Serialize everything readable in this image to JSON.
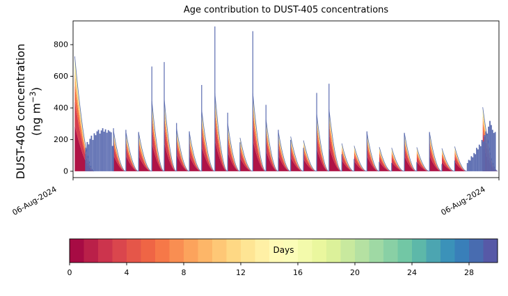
{
  "chart_data": {
    "type": "area",
    "title": "Age contribution to DUST-405 concentrations",
    "ylabel_line1": "DUST-405 concentration",
    "ylabel_unit_pre": "(ng m",
    "ylabel_unit_sup": "−3",
    "ylabel_unit_post": ")",
    "ylim": [
      -40,
      950
    ],
    "yticks": [
      0,
      200,
      400,
      600,
      800
    ],
    "xtick_labels": [
      "06-Aug-2024",
      "06-Aug-2024"
    ],
    "line_color": "#5a6bb0",
    "grid": false,
    "legend": "none",
    "spectral_anchors": [
      [
        0.0,
        "#9e0142"
      ],
      [
        0.1,
        "#d53e4f"
      ],
      [
        0.2,
        "#f46d43"
      ],
      [
        0.3,
        "#fdae61"
      ],
      [
        0.4,
        "#fee08b"
      ],
      [
        0.5,
        "#ffffbf"
      ],
      [
        0.6,
        "#e6f598"
      ],
      [
        0.7,
        "#abdda4"
      ],
      [
        0.8,
        "#66c2a5"
      ],
      [
        0.9,
        "#3288bd"
      ],
      [
        1.0,
        "#5e4fa2"
      ]
    ],
    "spikes": [
      {
        "f": 0.095,
        "peak": 272
      },
      {
        "f": 0.124,
        "peak": 262
      },
      {
        "f": 0.154,
        "peak": 248
      },
      {
        "f": 0.185,
        "peak": 662
      },
      {
        "f": 0.214,
        "peak": 690
      },
      {
        "f": 0.243,
        "peak": 305
      },
      {
        "f": 0.273,
        "peak": 252
      },
      {
        "f": 0.302,
        "peak": 545
      },
      {
        "f": 0.333,
        "peak": 915
      },
      {
        "f": 0.363,
        "peak": 370
      },
      {
        "f": 0.392,
        "peak": 183
      },
      {
        "f": 0.422,
        "peak": 885
      },
      {
        "f": 0.453,
        "peak": 420
      },
      {
        "f": 0.482,
        "peak": 262
      },
      {
        "f": 0.511,
        "peak": 198
      },
      {
        "f": 0.541,
        "peak": 148
      },
      {
        "f": 0.572,
        "peak": 495
      },
      {
        "f": 0.601,
        "peak": 553
      },
      {
        "f": 0.631,
        "peak": 108
      },
      {
        "f": 0.66,
        "peak": 78
      },
      {
        "f": 0.69,
        "peak": 252
      },
      {
        "f": 0.719,
        "peak": 60
      },
      {
        "f": 0.748,
        "peak": 52
      },
      {
        "f": 0.778,
        "peak": 243
      },
      {
        "f": 0.807,
        "peak": 58
      },
      {
        "f": 0.837,
        "peak": 248
      },
      {
        "f": 0.866,
        "peak": 45
      },
      {
        "f": 0.896,
        "peak": 68
      }
    ],
    "lead_wedge": {
      "f": 0.004,
      "span": 0.046,
      "h0": 165
    },
    "end_wedge": {
      "f": 0.962,
      "span": 0.036,
      "h0": 92
    },
    "left_cluster": {
      "f_start": 0.03,
      "f_step": 0.0033,
      "heights": [
        148,
        185,
        170,
        205,
        225,
        198,
        240,
        228,
        252,
        262,
        238,
        258,
        272,
        250,
        265,
        244,
        260,
        252,
        246,
        160
      ]
    },
    "right_cluster": {
      "f_start": 0.926,
      "f_step": 0.0031,
      "heights": [
        52,
        72,
        68,
        95,
        88,
        115,
        108,
        148,
        138,
        168,
        158,
        198,
        188,
        228,
        252,
        238,
        282,
        318,
        292,
        262,
        242,
        248
      ]
    },
    "wedge_age_layers": [
      {
        "age": 0.03,
        "frac": 0.4
      },
      {
        "age": 0.1,
        "frac": 0.22
      },
      {
        "age": 0.2,
        "frac": 0.14
      },
      {
        "age": 0.3,
        "frac": 0.1
      },
      {
        "age": 0.42,
        "frac": 0.08
      },
      {
        "age": 0.6,
        "frac": 0.06
      }
    ],
    "colorbar": {
      "label": "Days",
      "vmin": 0,
      "vmax": 30,
      "segments": 30,
      "ticks": [
        0,
        4,
        8,
        12,
        16,
        20,
        24,
        28
      ]
    }
  }
}
